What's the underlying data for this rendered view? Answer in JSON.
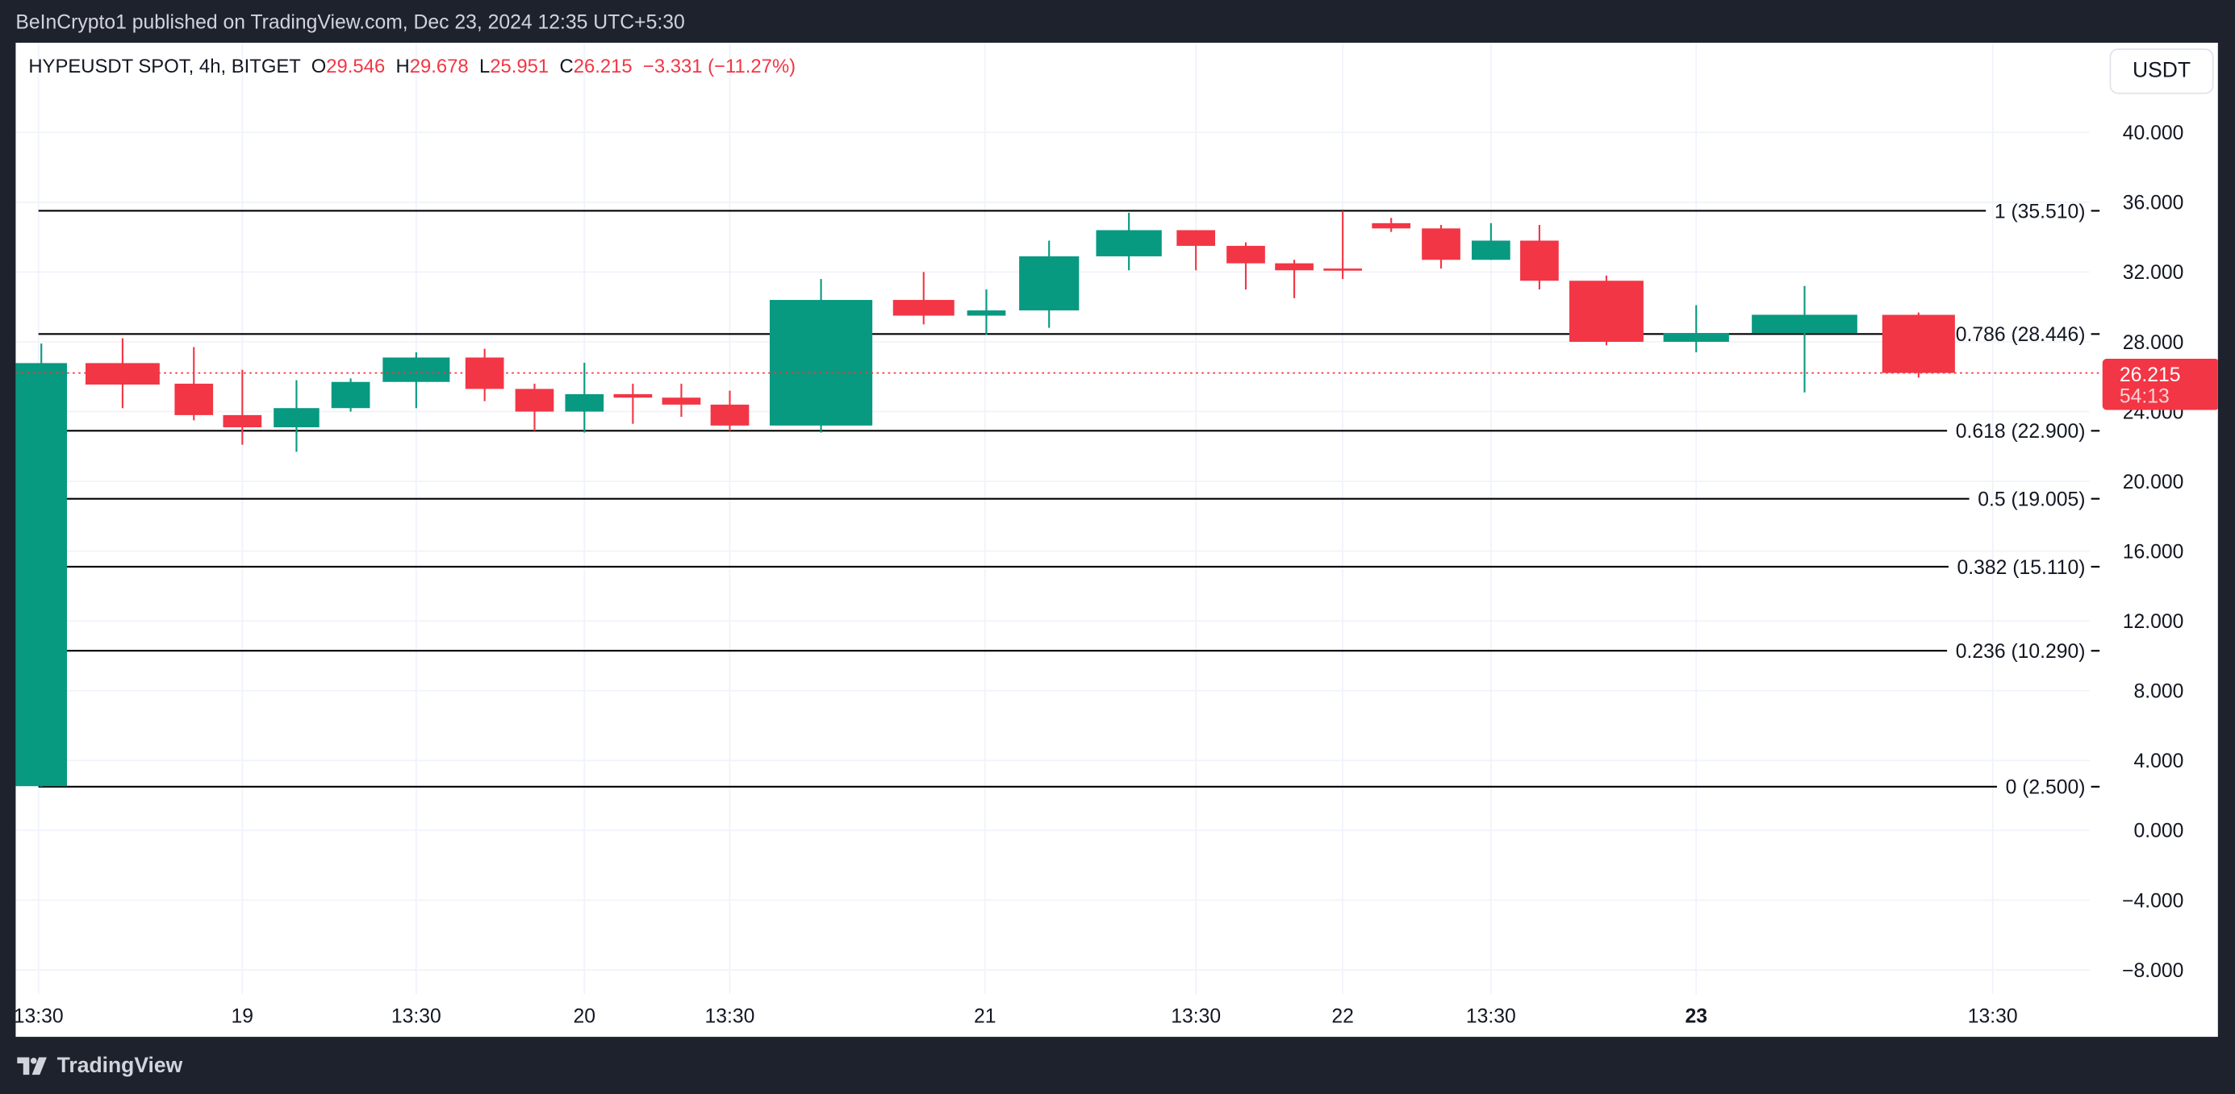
{
  "header": {
    "published": "BeInCrypto1 published on TradingView.com, Dec 23, 2024 12:35 UTC+5:30"
  },
  "legend": {
    "symbol": "HYPEUSDT SPOT, 4h, BITGET",
    "o_label": "O",
    "o": "29.546",
    "h_label": "H",
    "h": "29.678",
    "l_label": "L",
    "l": "25.951",
    "c_label": "C",
    "c": "26.215",
    "change": "−3.331 (−11.27%)"
  },
  "currency_button": "USDT",
  "price_tag": {
    "price": "26.215",
    "countdown": "54:13"
  },
  "footer": {
    "brand": "TradingView"
  },
  "colors": {
    "up": "#089981",
    "down": "#f23645",
    "fib": "#000000"
  },
  "chart_data": {
    "type": "candlestick",
    "title": "HYPEUSDT SPOT, 4h, BITGET",
    "ylim": [
      -9.5,
      44.5
    ],
    "y_ticks": [
      "40.000",
      "36.000",
      "32.000",
      "28.000",
      "24.000",
      "20.000",
      "16.000",
      "12.000",
      "8.000",
      "4.000",
      "0.000",
      "−4.000",
      "−8.000"
    ],
    "y_tick_values": [
      40,
      36,
      32,
      28,
      24,
      20,
      16,
      12,
      8,
      4,
      0,
      -4,
      -8
    ],
    "x_ticks": [
      {
        "label": "13:30",
        "bold": false
      },
      {
        "label": "19",
        "bold": false
      },
      {
        "label": "13:30",
        "bold": false
      },
      {
        "label": "20",
        "bold": false
      },
      {
        "label": "13:30",
        "bold": false
      },
      {
        "label": "21",
        "bold": false
      },
      {
        "label": "13:30",
        "bold": false
      },
      {
        "label": "22",
        "bold": false
      },
      {
        "label": "13:30",
        "bold": false
      },
      {
        "label": "23",
        "bold": true
      },
      {
        "label": "13:30",
        "bold": false
      }
    ],
    "candles": [
      {
        "o": 2.53,
        "h": 27.9,
        "l": 2.5,
        "c": 26.78
      },
      {
        "o": 26.78,
        "h": 28.2,
        "l": 24.2,
        "c": 25.55
      },
      {
        "o": 25.6,
        "h": 27.7,
        "l": 23.5,
        "c": 23.8
      },
      {
        "o": 23.8,
        "h": 26.4,
        "l": 22.1,
        "c": 23.1
      },
      {
        "o": 23.1,
        "h": 25.8,
        "l": 21.7,
        "c": 24.2
      },
      {
        "o": 24.2,
        "h": 25.9,
        "l": 24.0,
        "c": 25.7
      },
      {
        "o": 25.7,
        "h": 27.4,
        "l": 24.2,
        "c": 27.1
      },
      {
        "o": 27.1,
        "h": 27.6,
        "l": 24.6,
        "c": 25.3
      },
      {
        "o": 25.3,
        "h": 25.6,
        "l": 22.9,
        "c": 24.0
      },
      {
        "o": 24.0,
        "h": 26.8,
        "l": 22.8,
        "c": 25.0
      },
      {
        "o": 25.0,
        "h": 25.6,
        "l": 23.3,
        "c": 24.8
      },
      {
        "o": 24.8,
        "h": 25.6,
        "l": 23.7,
        "c": 24.4
      },
      {
        "o": 24.4,
        "h": 25.2,
        "l": 22.9,
        "c": 23.2
      },
      {
        "o": 23.2,
        "h": 31.6,
        "l": 22.8,
        "c": 30.4
      },
      {
        "o": 30.4,
        "h": 32.0,
        "l": 29.0,
        "c": 29.5
      },
      {
        "o": 29.5,
        "h": 31.0,
        "l": 28.4,
        "c": 29.8
      },
      {
        "o": 29.8,
        "h": 33.8,
        "l": 28.8,
        "c": 32.9
      },
      {
        "o": 32.9,
        "h": 35.4,
        "l": 32.1,
        "c": 34.4
      },
      {
        "o": 34.4,
        "h": 34.4,
        "l": 32.1,
        "c": 33.5
      },
      {
        "o": 33.5,
        "h": 33.7,
        "l": 31.0,
        "c": 32.5
      },
      {
        "o": 32.5,
        "h": 32.7,
        "l": 30.5,
        "c": 32.1
      },
      {
        "o": 32.2,
        "h": 35.5,
        "l": 31.6,
        "c": 32.1
      },
      {
        "o": 34.8,
        "h": 35.1,
        "l": 34.3,
        "c": 34.5
      },
      {
        "o": 34.5,
        "h": 34.7,
        "l": 32.2,
        "c": 32.7
      },
      {
        "o": 32.7,
        "h": 34.8,
        "l": 32.7,
        "c": 33.8
      },
      {
        "o": 33.8,
        "h": 34.7,
        "l": 31.0,
        "c": 31.5
      },
      {
        "o": 31.5,
        "h": 31.8,
        "l": 27.8,
        "c": 28.0
      },
      {
        "o": 28.0,
        "h": 30.1,
        "l": 27.4,
        "c": 28.5
      },
      {
        "o": 28.5,
        "h": 31.2,
        "l": 25.1,
        "c": 29.55
      },
      {
        "o": 29.546,
        "h": 29.678,
        "l": 25.951,
        "c": 26.215
      }
    ],
    "last_price": 26.215,
    "fib_levels": [
      {
        "ratio": 1,
        "value": 35.51,
        "label": "1 (35.510)"
      },
      {
        "ratio": 0.786,
        "value": 28.446,
        "label": "0.786 (28.446)"
      },
      {
        "ratio": 0.618,
        "value": 22.9,
        "label": "0.618 (22.900)"
      },
      {
        "ratio": 0.5,
        "value": 19.005,
        "label": "0.5 (19.005)"
      },
      {
        "ratio": 0.382,
        "value": 15.11,
        "label": "0.382 (15.110)"
      },
      {
        "ratio": 0.236,
        "value": 10.29,
        "label": "0.236 (10.290)"
      },
      {
        "ratio": 0,
        "value": 2.5,
        "label": "0 (2.500)"
      }
    ],
    "grid": true
  }
}
